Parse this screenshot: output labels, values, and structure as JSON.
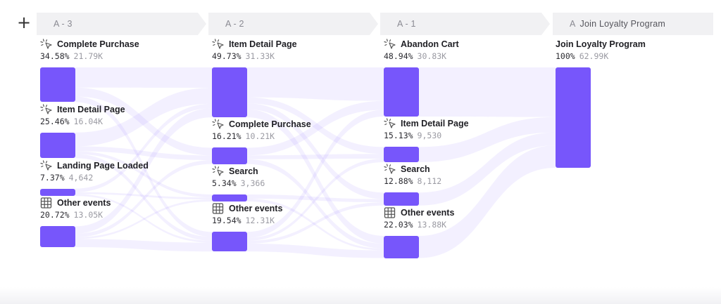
{
  "toolbar": {
    "add_icon": "plus-icon",
    "add_glyph": "+"
  },
  "colors": {
    "node": "#7756fb",
    "flow": "#7756fb",
    "stage_bar": "#f1f1f3"
  },
  "chart_data": {
    "type": "sankey",
    "title": "",
    "stages": [
      {
        "prefix": "A",
        "label": "A - 3",
        "name": ""
      },
      {
        "prefix": "A",
        "label": "A - 2",
        "name": ""
      },
      {
        "prefix": "A",
        "label": "A - 1",
        "name": ""
      },
      {
        "prefix": "A",
        "label": "",
        "name": "Join Loyalty Program"
      }
    ],
    "nodes": [
      {
        "stage": 0,
        "name": "Complete Purchase",
        "icon": "cursor-click-icon",
        "percent": "34.58%",
        "count": "21.79K",
        "value": 34.58
      },
      {
        "stage": 0,
        "name": "Item Detail Page",
        "icon": "cursor-click-icon",
        "percent": "25.46%",
        "count": "16.04K",
        "value": 25.46
      },
      {
        "stage": 0,
        "name": "Landing Page Loaded",
        "icon": "cursor-click-icon",
        "percent": "7.37%",
        "count": "4,642",
        "value": 7.37
      },
      {
        "stage": 0,
        "name": "Other events",
        "icon": "grid-icon",
        "percent": "20.72%",
        "count": "13.05K",
        "value": 20.72
      },
      {
        "stage": 1,
        "name": "Item Detail Page",
        "icon": "cursor-click-icon",
        "percent": "49.73%",
        "count": "31.33K",
        "value": 49.73
      },
      {
        "stage": 1,
        "name": "Complete Purchase",
        "icon": "cursor-click-icon",
        "percent": "16.21%",
        "count": "10.21K",
        "value": 16.21
      },
      {
        "stage": 1,
        "name": "Search",
        "icon": "cursor-click-icon",
        "percent": "5.34%",
        "count": "3,366",
        "value": 5.34
      },
      {
        "stage": 1,
        "name": "Other events",
        "icon": "grid-icon",
        "percent": "19.54%",
        "count": "12.31K",
        "value": 19.54
      },
      {
        "stage": 2,
        "name": "Abandon Cart",
        "icon": "cursor-click-icon",
        "percent": "48.94%",
        "count": "30.83K",
        "value": 48.94
      },
      {
        "stage": 2,
        "name": "Item Detail Page",
        "icon": "cursor-click-icon",
        "percent": "15.13%",
        "count": "9,530",
        "value": 15.13
      },
      {
        "stage": 2,
        "name": "Search",
        "icon": "cursor-click-icon",
        "percent": "12.88%",
        "count": "8,112",
        "value": 12.88
      },
      {
        "stage": 2,
        "name": "Other events",
        "icon": "grid-icon",
        "percent": "22.03%",
        "count": "13.88K",
        "value": 22.03
      },
      {
        "stage": 3,
        "name": "Join Loyalty Program",
        "icon": "",
        "percent": "100%",
        "count": "62.99K",
        "value": 100
      }
    ],
    "links": [
      {
        "from": 0,
        "to": 4,
        "value": 18
      },
      {
        "from": 0,
        "to": 5,
        "value": 8
      },
      {
        "from": 0,
        "to": 7,
        "value": 5
      },
      {
        "from": 1,
        "to": 4,
        "value": 14
      },
      {
        "from": 1,
        "to": 5,
        "value": 5
      },
      {
        "from": 1,
        "to": 6,
        "value": 3
      },
      {
        "from": 1,
        "to": 7,
        "value": 4
      },
      {
        "from": 2,
        "to": 4,
        "value": 4
      },
      {
        "from": 2,
        "to": 6,
        "value": 2
      },
      {
        "from": 2,
        "to": 7,
        "value": 2
      },
      {
        "from": 3,
        "to": 4,
        "value": 8
      },
      {
        "from": 3,
        "to": 5,
        "value": 4
      },
      {
        "from": 3,
        "to": 6,
        "value": 2
      },
      {
        "from": 3,
        "to": 7,
        "value": 9
      },
      {
        "from": 4,
        "to": 8,
        "value": 30
      },
      {
        "from": 4,
        "to": 9,
        "value": 6
      },
      {
        "from": 4,
        "to": 10,
        "value": 6
      },
      {
        "from": 4,
        "to": 11,
        "value": 8
      },
      {
        "from": 5,
        "to": 8,
        "value": 8
      },
      {
        "from": 5,
        "to": 9,
        "value": 4
      },
      {
        "from": 5,
        "to": 11,
        "value": 5
      },
      {
        "from": 6,
        "to": 10,
        "value": 3
      },
      {
        "from": 6,
        "to": 11,
        "value": 2
      },
      {
        "from": 7,
        "to": 8,
        "value": 6
      },
      {
        "from": 7,
        "to": 9,
        "value": 3
      },
      {
        "from": 7,
        "to": 10,
        "value": 3
      },
      {
        "from": 7,
        "to": 11,
        "value": 8
      },
      {
        "from": 8,
        "to": 12,
        "value": 48.94
      },
      {
        "from": 9,
        "to": 12,
        "value": 15.13
      },
      {
        "from": 10,
        "to": 12,
        "value": 12.88
      },
      {
        "from": 11,
        "to": 12,
        "value": 22.03
      }
    ]
  }
}
